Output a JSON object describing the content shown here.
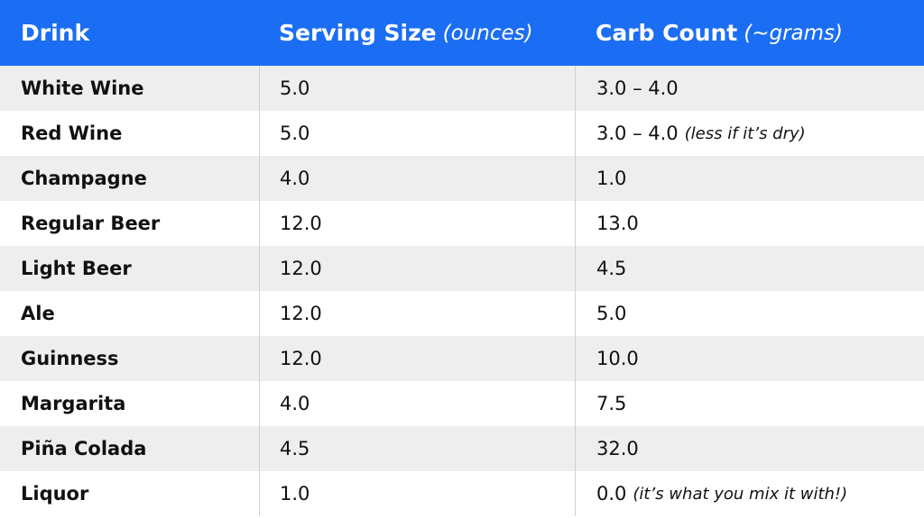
{
  "table": {
    "header": [
      {
        "text": "Drink"
      },
      {
        "text": "Serving Size",
        "note": "(ounces)"
      },
      {
        "text": "Carb Count",
        "note": "(~grams)"
      }
    ],
    "rows": [
      {
        "drink": "White Wine",
        "serving": "5.0",
        "carbs": "3.0 – 4.0"
      },
      {
        "drink": "Red Wine",
        "serving": "5.0",
        "carbs": "3.0 – 4.0",
        "carbs_note": "(less if it’s dry)"
      },
      {
        "drink": "Champagne",
        "serving": "4.0",
        "carbs": "1.0"
      },
      {
        "drink": "Regular Beer",
        "serving": "12.0",
        "carbs": "13.0"
      },
      {
        "drink": "Light Beer",
        "serving": "12.0",
        "carbs": "4.5"
      },
      {
        "drink": "Ale",
        "serving": "12.0",
        "carbs": "5.0"
      },
      {
        "drink": "Guinness",
        "serving": "12.0",
        "carbs": "10.0"
      },
      {
        "drink": "Margarita",
        "serving": "4.0",
        "carbs": "7.5"
      },
      {
        "drink": "Piña Colada",
        "serving": "4.5",
        "carbs": "32.0"
      },
      {
        "drink": "Liquor",
        "serving": "1.0",
        "carbs": "0.0",
        "carbs_note": "(it’s what you mix it with!)"
      }
    ]
  }
}
